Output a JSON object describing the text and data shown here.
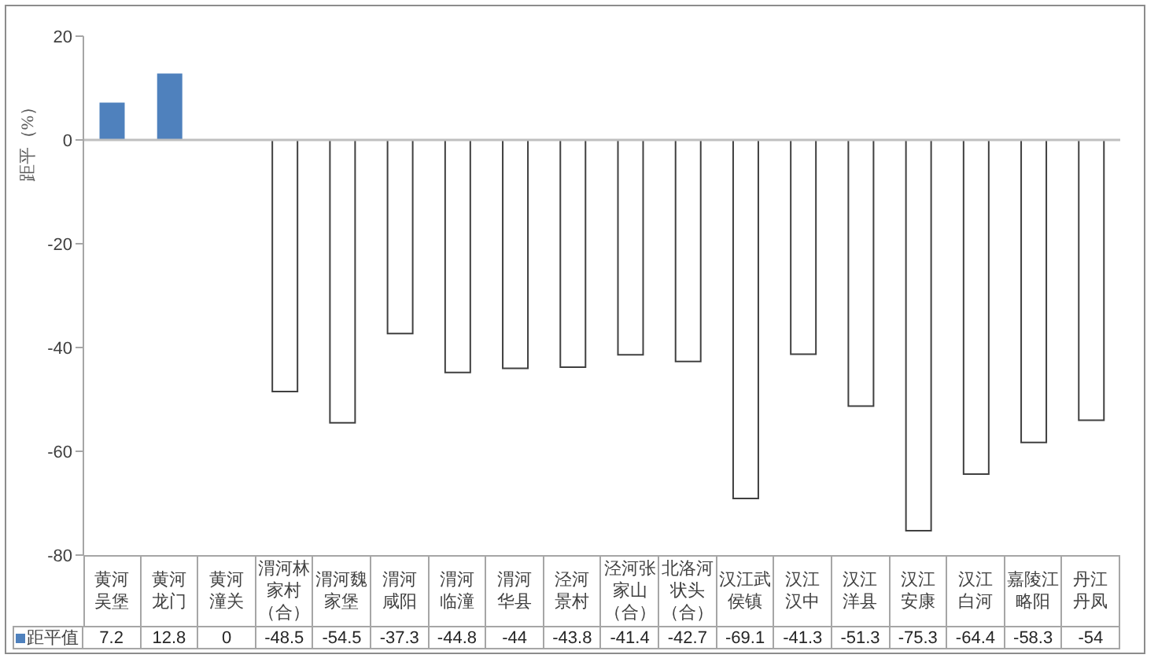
{
  "chart_data": {
    "type": "bar",
    "ylabel": "距平（%）",
    "categories": [
      "黄河吴堡",
      "黄河龙门",
      "黄河潼关",
      "渭河林家村（合）",
      "渭河魏家堡",
      "渭河咸阳",
      "渭河临潼",
      "渭河华县",
      "泾河景村",
      "泾河张家山（合）",
      "北洛河状头（合）",
      "汉江武侯镇",
      "汉江汉中",
      "汉江洋县",
      "汉江安康",
      "汉江白河",
      "嘉陵江略阳",
      "丹江丹凤"
    ],
    "series": [
      {
        "name": "距平值",
        "color": "#4f81bd",
        "colors": [
          "#4f81bd",
          "#4f81bd",
          "#4f81bd",
          "#ffffff",
          "#ffffff",
          "#ffffff",
          "#ffffff",
          "#ffffff",
          "#ffffff",
          "#ffffff",
          "#ffffff",
          "#ffffff",
          "#ffffff",
          "#ffffff",
          "#ffffff",
          "#ffffff",
          "#ffffff",
          "#ffffff"
        ],
        "values": [
          7.2,
          12.8,
          0,
          -48.5,
          -54.5,
          -37.3,
          -44.8,
          -44,
          -43.8,
          -41.4,
          -42.7,
          -69.1,
          -41.3,
          -51.3,
          -75.3,
          -64.4,
          -58.3,
          -54
        ]
      }
    ],
    "ylim": [
      -80,
      20
    ],
    "yticks": [
      -80,
      -60,
      -40,
      -20,
      0,
      20
    ],
    "data_labels": true,
    "legend": "bottom left"
  }
}
